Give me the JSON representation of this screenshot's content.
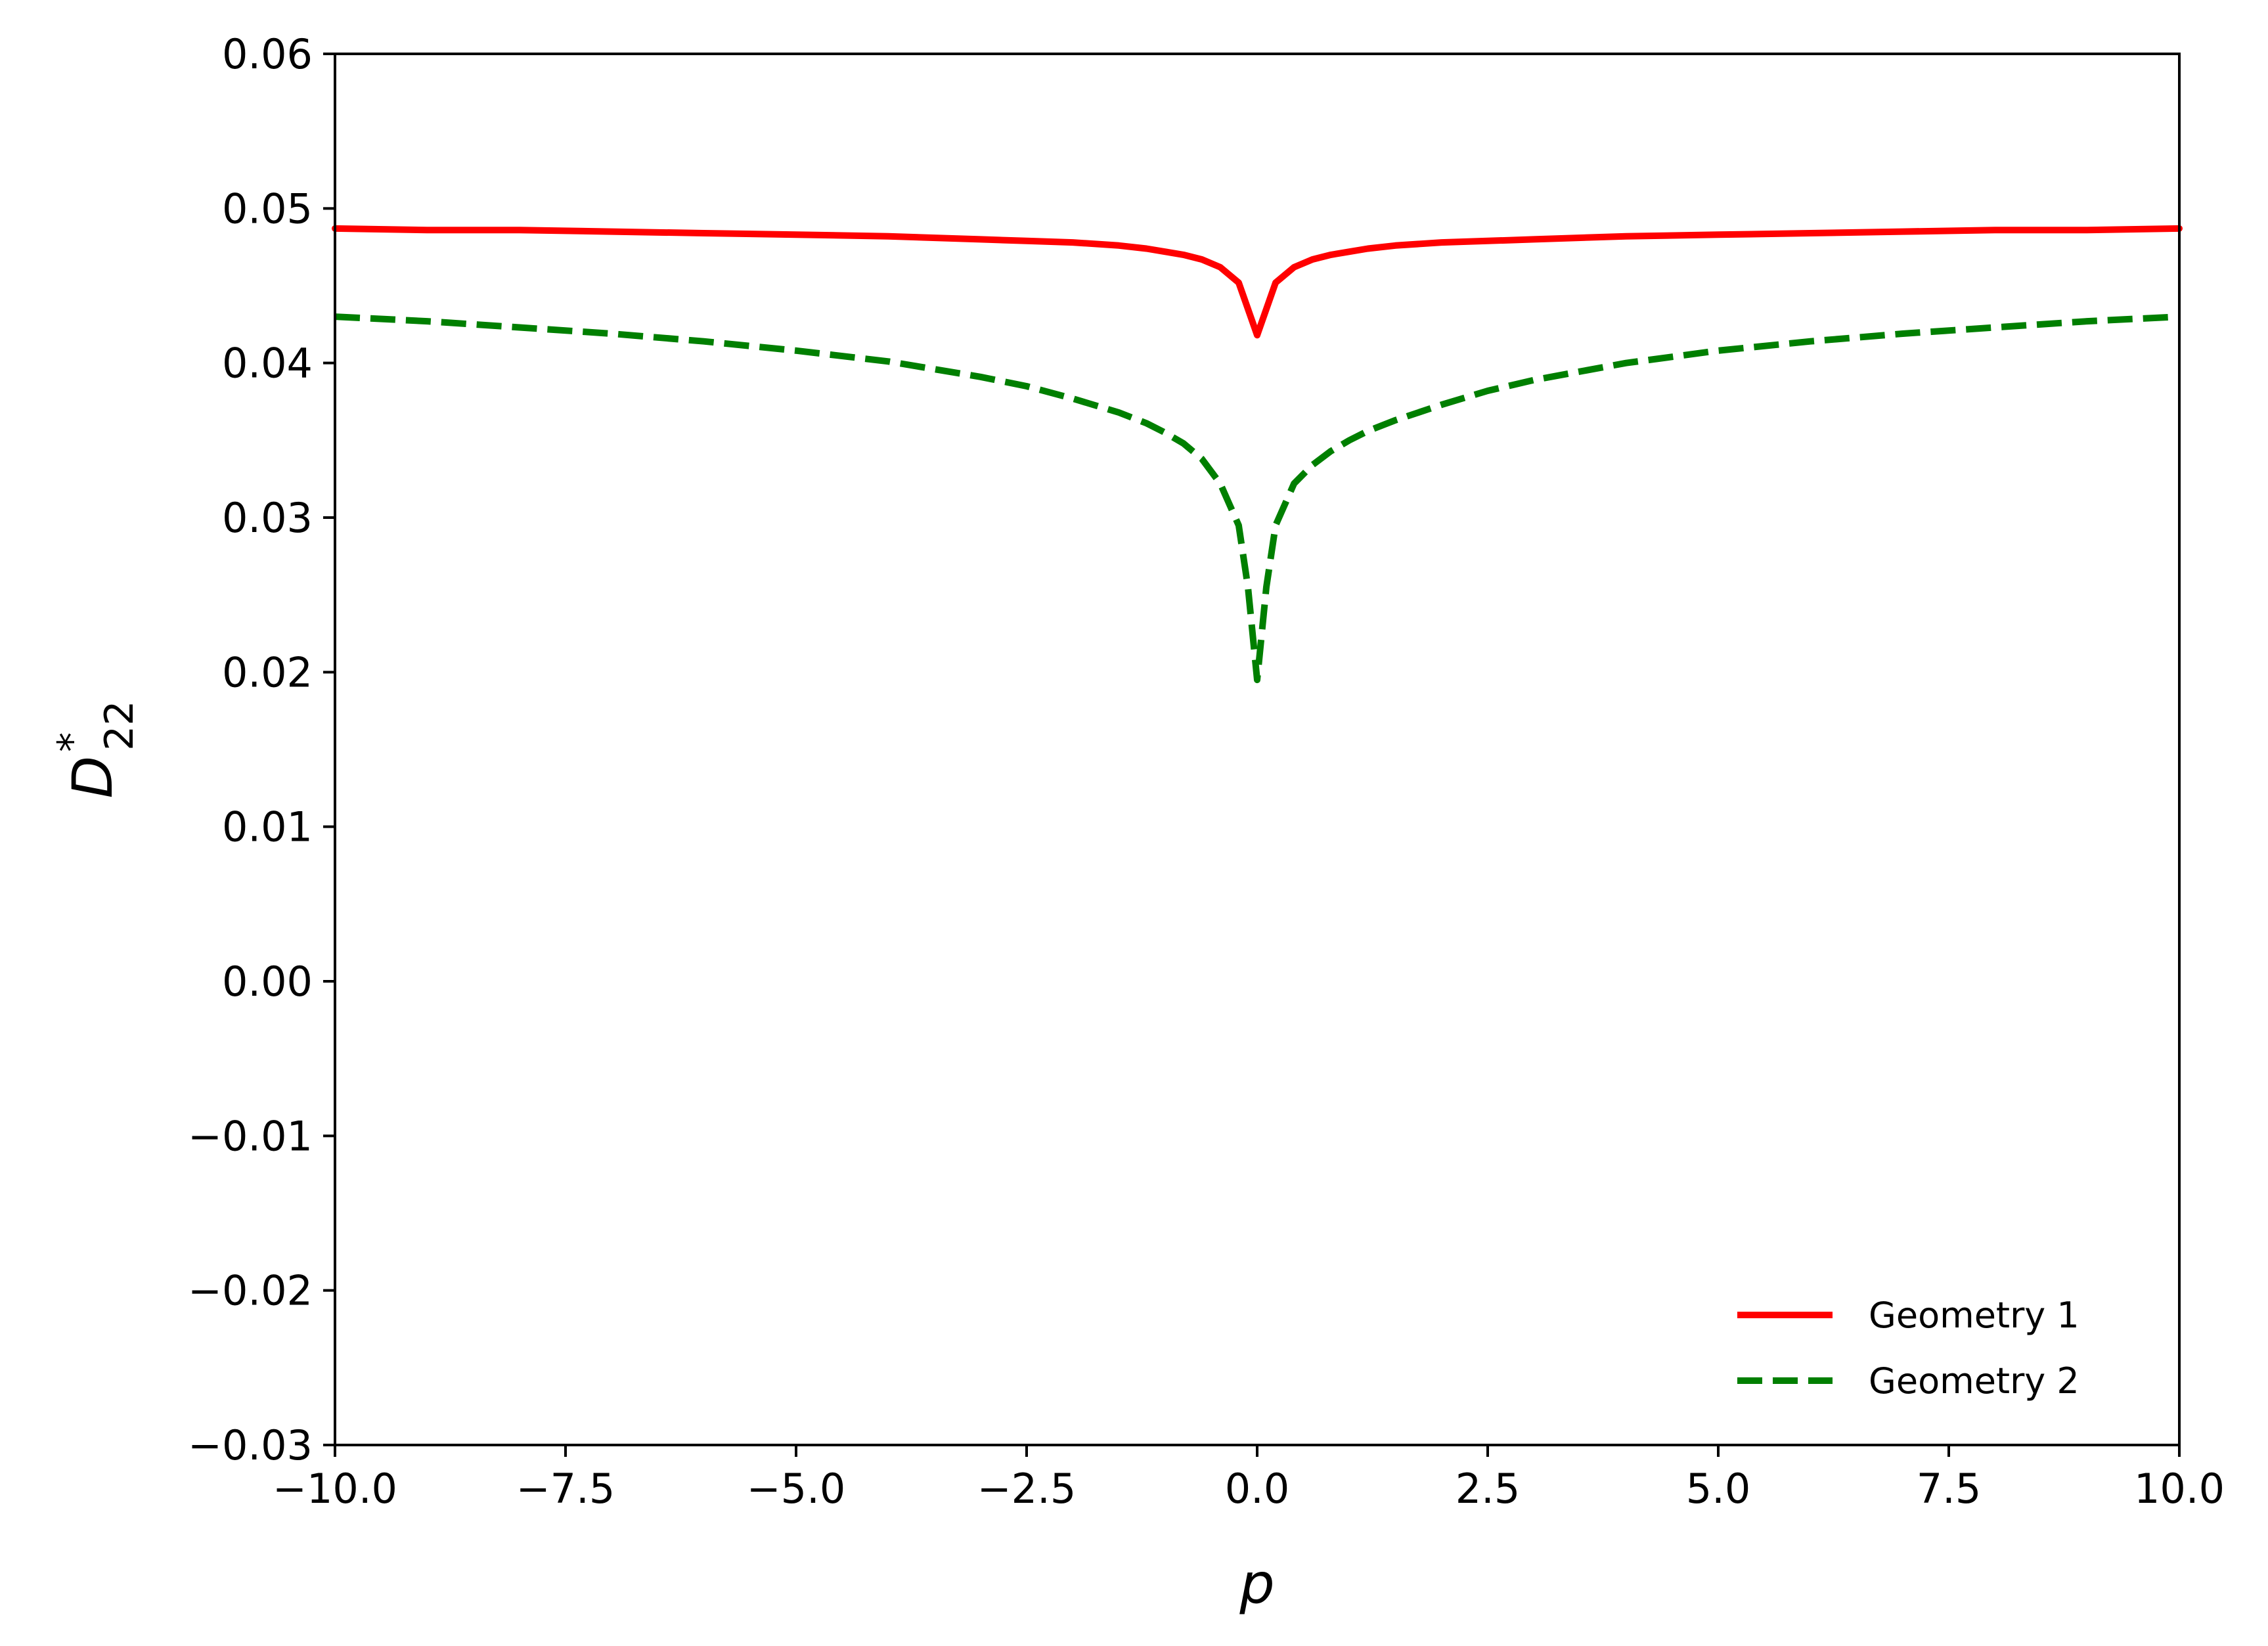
{
  "chart_data": {
    "type": "line",
    "title": "",
    "xlabel": "p",
    "ylabel": {
      "base": "D",
      "sup": "*",
      "sub": "22"
    },
    "xlim": [
      -10,
      10
    ],
    "ylim": [
      -0.03,
      0.06
    ],
    "xticks": [
      -10.0,
      -7.5,
      -5.0,
      -2.5,
      0.0,
      2.5,
      5.0,
      7.5,
      10.0
    ],
    "xtick_labels": [
      "−10.0",
      "−7.5",
      "−5.0",
      "−2.5",
      "0.0",
      "2.5",
      "5.0",
      "7.5",
      "10.0"
    ],
    "yticks": [
      -0.03,
      -0.02,
      -0.01,
      0.0,
      0.01,
      0.02,
      0.03,
      0.04,
      0.05,
      0.06
    ],
    "ytick_labels": [
      "−0.03",
      "−0.02",
      "−0.01",
      "0.00",
      "0.01",
      "0.02",
      "0.03",
      "0.04",
      "0.05",
      "0.06"
    ],
    "grid": false,
    "legend_position": "bottom-right",
    "series": [
      {
        "name": "Geometry 1",
        "color": "#ff0000",
        "style": "solid",
        "x": [
          -10,
          -9,
          -8,
          -7,
          -6,
          -5,
          -4,
          -3,
          -2.5,
          -2,
          -1.5,
          -1.2,
          -1.0,
          -0.8,
          -0.6,
          -0.4,
          -0.2,
          0,
          0.2,
          0.4,
          0.6,
          0.8,
          1.0,
          1.2,
          1.5,
          2,
          2.5,
          3,
          4,
          5,
          6,
          7,
          8,
          9,
          10
        ],
        "y": [
          0.0487,
          0.0486,
          0.0486,
          0.0485,
          0.0484,
          0.0483,
          0.0482,
          0.048,
          0.0479,
          0.0478,
          0.0476,
          0.0474,
          0.0472,
          0.047,
          0.0467,
          0.0462,
          0.0452,
          0.0418,
          0.0452,
          0.0462,
          0.0467,
          0.047,
          0.0472,
          0.0474,
          0.0476,
          0.0478,
          0.0479,
          0.048,
          0.0482,
          0.0483,
          0.0484,
          0.0485,
          0.0486,
          0.0486,
          0.0487
        ]
      },
      {
        "name": "Geometry 2",
        "color": "#007f00",
        "style": "dashed",
        "x": [
          -10,
          -9,
          -8,
          -7,
          -6,
          -5,
          -4,
          -3,
          -2.5,
          -2,
          -1.5,
          -1.2,
          -1.0,
          -0.8,
          -0.6,
          -0.4,
          -0.2,
          -0.1,
          0,
          0.1,
          0.2,
          0.4,
          0.6,
          0.8,
          1.0,
          1.2,
          1.5,
          2,
          2.5,
          3,
          4,
          5,
          6,
          7,
          8,
          9,
          10
        ],
        "y": [
          0.043,
          0.0427,
          0.0423,
          0.0419,
          0.0414,
          0.0408,
          0.0401,
          0.0391,
          0.0385,
          0.0377,
          0.0368,
          0.0361,
          0.0355,
          0.0348,
          0.0338,
          0.0322,
          0.0295,
          0.0255,
          0.0195,
          0.0255,
          0.0295,
          0.0322,
          0.0334,
          0.0343,
          0.035,
          0.0356,
          0.0363,
          0.0373,
          0.0382,
          0.0389,
          0.04,
          0.0408,
          0.0414,
          0.0419,
          0.0423,
          0.0427,
          0.043
        ]
      }
    ]
  }
}
